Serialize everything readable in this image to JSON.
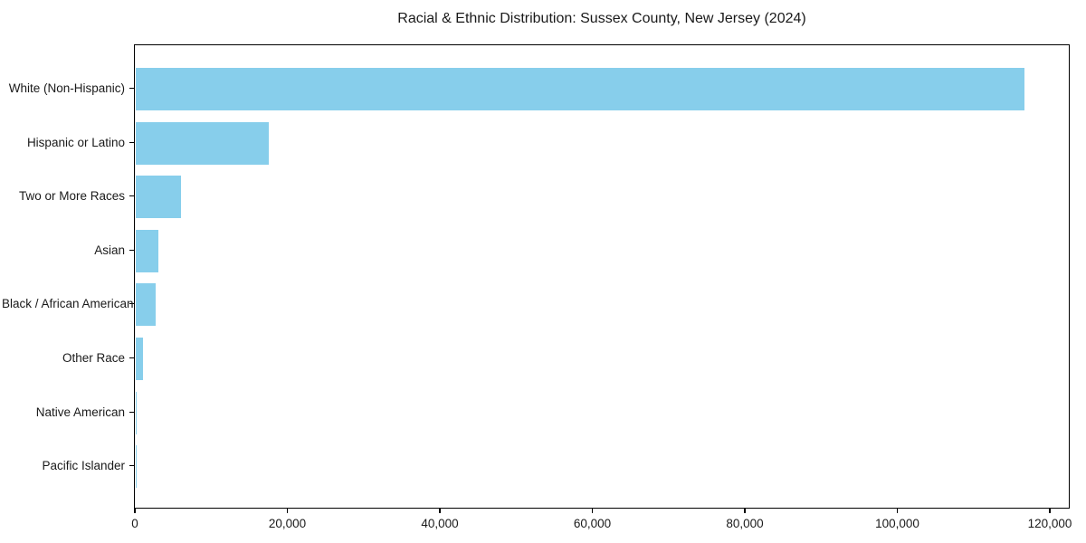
{
  "chart_data": {
    "type": "bar",
    "orientation": "horizontal",
    "title": "Racial & Ethnic Distribution: Sussex County, New Jersey (2024)",
    "xlabel": "",
    "ylabel": "",
    "categories": [
      "White (Non-Hispanic)",
      "Hispanic or Latino",
      "Two or More Races",
      "Asian",
      "Black / African American",
      "Other Race",
      "Native American",
      "Pacific Islander"
    ],
    "values": [
      116500,
      17400,
      5900,
      2950,
      2650,
      1000,
      150,
      40
    ],
    "bar_color": "#87ceeb",
    "xlim": [
      0,
      122650
    ],
    "xticks": {
      "values": [
        0,
        20000,
        40000,
        60000,
        80000,
        100000,
        120000
      ],
      "labels": [
        "0",
        "20,000",
        "40,000",
        "60,000",
        "80,000",
        "100,000",
        "120,000"
      ]
    },
    "grid": false,
    "legend": null,
    "frame": true
  }
}
